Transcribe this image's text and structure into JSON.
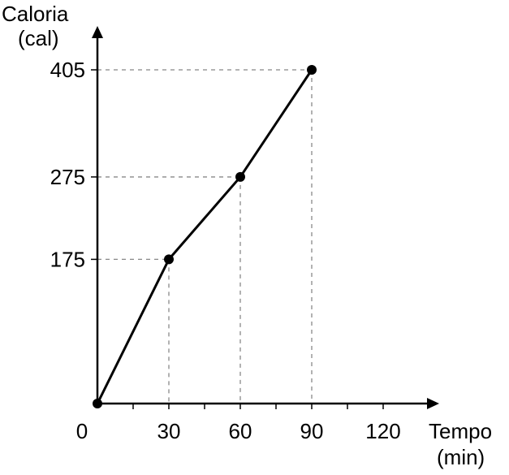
{
  "chart_data": {
    "type": "line",
    "ylabel_line1": "Caloria",
    "ylabel_line2": "(cal)",
    "xlabel_line1": "Tempo",
    "xlabel_line2": "(min)",
    "origin_label": "0",
    "x": [
      0,
      30,
      60,
      90
    ],
    "values": [
      0,
      175,
      275,
      405
    ],
    "xticks": [
      30,
      60,
      90,
      120
    ],
    "xtick_labels": [
      "30",
      "60",
      "90",
      "120"
    ],
    "yticks": [
      175,
      275,
      405
    ],
    "ytick_labels": [
      "175",
      "275",
      "405"
    ],
    "xlim": [
      0,
      120
    ],
    "ylim": [
      0,
      405
    ],
    "grid": false,
    "guide_lines": "dashed",
    "colors": {
      "line": "#000000",
      "guide": "#888888"
    }
  }
}
